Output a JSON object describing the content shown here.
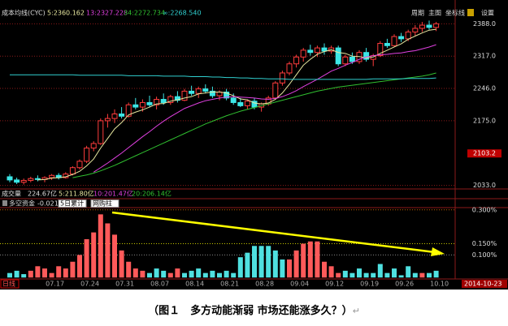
{
  "toolbar": {
    "indicator": "成本均线(CYC)",
    "buttons": [
      "周期",
      "主图",
      "坐标线",
      "设置"
    ]
  },
  "volume_header": {
    "title": "成交量",
    "items": [
      "224.67亿",
      "5:211.80亿",
      "10:201.47亿",
      "20:206.14亿"
    ]
  },
  "footer": {
    "period": "日线",
    "date": "2014-10-23"
  },
  "caption": "（图１　多方动能渐弱 市场还能涨多久？）",
  "paragraph_mark": "↵",
  "chart_data": [
    {
      "type": "candlestick",
      "up_color": "#ff3c3c",
      "down_color": "#3ce6e6",
      "ylim": [
        2027,
        2426
      ],
      "yticks": [
        {
          "value": 2033,
          "label": "2033.0"
        },
        {
          "value": 2175,
          "label": "2175.0"
        },
        {
          "value": 2246,
          "label": "2246.0"
        },
        {
          "value": 2317,
          "label": "2317.0"
        },
        {
          "value": 2388,
          "label": "2388.0"
        }
      ],
      "price_marker": {
        "value": 2103.2,
        "label": "2103.2"
      },
      "grid": true,
      "open": [
        2052,
        2045,
        2040,
        2044,
        2048,
        2046,
        2050,
        2055,
        2050,
        2058,
        2072,
        2086,
        2115,
        2125,
        2175,
        2180,
        2190,
        2185,
        2210,
        2205,
        2215,
        2210,
        2222,
        2215,
        2228,
        2220,
        2240,
        2235,
        2245,
        2240,
        2230,
        2238,
        2225,
        2215,
        2208,
        2218,
        2205,
        2212,
        2225,
        2258,
        2280,
        2300,
        2315,
        2330,
        2325,
        2335,
        2328,
        2335,
        2300,
        2315,
        2305,
        2325,
        2310,
        2318,
        2345,
        2340,
        2360,
        2355,
        2370,
        2378,
        2385,
        2380
      ],
      "high": [
        2058,
        2050,
        2048,
        2052,
        2055,
        2053,
        2058,
        2060,
        2062,
        2075,
        2090,
        2120,
        2130,
        2180,
        2190,
        2200,
        2205,
        2215,
        2225,
        2222,
        2230,
        2228,
        2235,
        2232,
        2240,
        2245,
        2252,
        2250,
        2255,
        2250,
        2242,
        2245,
        2235,
        2225,
        2222,
        2225,
        2215,
        2230,
        2262,
        2285,
        2305,
        2320,
        2335,
        2342,
        2340,
        2345,
        2340,
        2340,
        2320,
        2325,
        2330,
        2335,
        2322,
        2350,
        2355,
        2365,
        2368,
        2375,
        2385,
        2392,
        2395,
        2392
      ],
      "low": [
        2040,
        2036,
        2035,
        2040,
        2042,
        2040,
        2045,
        2046,
        2048,
        2055,
        2068,
        2082,
        2108,
        2122,
        2160,
        2170,
        2180,
        2182,
        2200,
        2195,
        2205,
        2200,
        2210,
        2210,
        2215,
        2218,
        2230,
        2225,
        2235,
        2225,
        2220,
        2220,
        2210,
        2205,
        2200,
        2200,
        2195,
        2208,
        2222,
        2252,
        2275,
        2292,
        2305,
        2318,
        2315,
        2320,
        2322,
        2295,
        2295,
        2300,
        2300,
        2305,
        2295,
        2315,
        2335,
        2338,
        2348,
        2350,
        2362,
        2370,
        2375,
        2372
      ],
      "close": [
        2045,
        2040,
        2044,
        2048,
        2046,
        2050,
        2055,
        2050,
        2058,
        2072,
        2086,
        2115,
        2125,
        2175,
        2180,
        2190,
        2185,
        2210,
        2205,
        2215,
        2210,
        2222,
        2215,
        2228,
        2220,
        2240,
        2235,
        2245,
        2240,
        2230,
        2238,
        2225,
        2215,
        2208,
        2218,
        2205,
        2212,
        2225,
        2258,
        2280,
        2300,
        2315,
        2330,
        2325,
        2335,
        2328,
        2335,
        2300,
        2315,
        2305,
        2325,
        2310,
        2318,
        2345,
        2340,
        2360,
        2355,
        2370,
        2378,
        2385,
        2380,
        2388
      ],
      "series": [
        {
          "name": "5:2360.162",
          "color": "#e8e8a0",
          "values": [
            null,
            null,
            null,
            null,
            2045,
            2046,
            2049,
            2050,
            2052,
            2057,
            2064,
            2076,
            2091,
            2115,
            2136,
            2157,
            2171,
            2188,
            2194,
            2199,
            2205,
            2212,
            2213,
            2218,
            2221,
            2225,
            2228,
            2234,
            2236,
            2238,
            2238,
            2236,
            2230,
            2223,
            2221,
            2214,
            2212,
            2214,
            2222,
            2236,
            2255,
            2276,
            2297,
            2310,
            2321,
            2327,
            2331,
            2325,
            2323,
            2317,
            2316,
            2313,
            2315,
            2323,
            2330,
            2337,
            2344,
            2354,
            2361,
            2368,
            2374,
            2376
          ]
        },
        {
          "name": "13:2327.228",
          "color": "#e040e0",
          "values": [
            null,
            null,
            null,
            null,
            null,
            null,
            null,
            null,
            null,
            null,
            null,
            null,
            2062,
            2072,
            2082,
            2093,
            2104,
            2116,
            2128,
            2140,
            2151,
            2163,
            2174,
            2184,
            2193,
            2202,
            2208,
            2214,
            2219,
            2222,
            2225,
            2227,
            2228,
            2227,
            2226,
            2225,
            2223,
            2222,
            2224,
            2228,
            2234,
            2241,
            2250,
            2258,
            2266,
            2275,
            2284,
            2290,
            2297,
            2303,
            2310,
            2315,
            2318,
            2320,
            2321,
            2323,
            2324,
            2327,
            2329,
            2333,
            2337,
            2342
          ]
        },
        {
          "name": "34:2272.734",
          "color": "#30c030",
          "values": [
            null,
            null,
            null,
            null,
            null,
            null,
            null,
            null,
            null,
            2050,
            2053,
            2056,
            2060,
            2065,
            2071,
            2077,
            2084,
            2091,
            2098,
            2105,
            2112,
            2119,
            2126,
            2133,
            2140,
            2147,
            2154,
            2161,
            2168,
            2174,
            2180,
            2186,
            2191,
            2196,
            2200,
            2204,
            2208,
            2212,
            2216,
            2220,
            2224,
            2228,
            2232,
            2236,
            2240,
            2243,
            2246,
            2249,
            2251,
            2253,
            2255,
            2257,
            2259,
            2261,
            2263,
            2265,
            2267,
            2269,
            2271,
            2273,
            2276,
            2280
          ]
        },
        {
          "name": "∞:2268.540",
          "color": "#30d0d0",
          "values": [
            2276,
            2276,
            2276,
            2276,
            2276,
            2276,
            2276,
            2276,
            2276,
            2276,
            2275,
            2275,
            2275,
            2275,
            2275,
            2275,
            2275,
            2274,
            2274,
            2274,
            2274,
            2274,
            2273,
            2273,
            2273,
            2273,
            2272,
            2272,
            2272,
            2271,
            2271,
            2270,
            2270,
            2269,
            2269,
            2268,
            2268,
            2267,
            2267,
            2267,
            2266,
            2266,
            2266,
            2266,
            2266,
            2266,
            2266,
            2266,
            2266,
            2266,
            2266,
            2266,
            2267,
            2267,
            2267,
            2267,
            2267,
            2268,
            2268,
            2268,
            2268,
            2269
          ]
        }
      ]
    },
    {
      "type": "bar",
      "title": "多空资金",
      "subtitle": "-0.021%",
      "options": [
        "5日累计",
        "网购柱"
      ],
      "ylim": [
        -0.01,
        0.31
      ],
      "yticks": [
        {
          "value": 0.1,
          "label": "0.100%"
        },
        {
          "value": 0.15,
          "label": "0.150%"
        },
        {
          "value": 0.3,
          "label": "0.300%"
        }
      ],
      "grid": true,
      "categories": [
        null,
        null,
        null,
        null,
        null,
        null,
        "07.17",
        null,
        null,
        null,
        null,
        "07.24",
        null,
        null,
        null,
        null,
        "07.31",
        null,
        null,
        null,
        null,
        "08.07",
        null,
        null,
        null,
        null,
        "08.14",
        null,
        null,
        null,
        null,
        "08.21",
        null,
        null,
        null,
        null,
        "08.28",
        null,
        null,
        null,
        null,
        "09.04",
        null,
        null,
        null,
        null,
        "09.12",
        null,
        null,
        null,
        null,
        "09.19",
        null,
        null,
        null,
        null,
        "09.26",
        null,
        null,
        null,
        null,
        "10.10"
      ],
      "series": [
        {
          "color": "#ff5a5a",
          "values": [
            null,
            null,
            null,
            0.03,
            0.05,
            0.04,
            0.02,
            0.05,
            0.04,
            0.07,
            0.1,
            0.17,
            0.2,
            0.28,
            0.24,
            0.19,
            0.12,
            0.07,
            0.04,
            0.03,
            null,
            null,
            null,
            0.02,
            0.04,
            null,
            null,
            null,
            null,
            null,
            null,
            null,
            null,
            null,
            null,
            null,
            null,
            null,
            null,
            null,
            0.08,
            0.12,
            0.15,
            0.16,
            0.16,
            0.07,
            0.05,
            0.02,
            null,
            null,
            null,
            null,
            null,
            null,
            null,
            null,
            null,
            null,
            null,
            0.02,
            null,
            null
          ]
        },
        {
          "color": "#4fe0e0",
          "values": [
            0.02,
            0.03,
            0.015,
            null,
            null,
            null,
            null,
            null,
            null,
            null,
            null,
            null,
            null,
            null,
            null,
            null,
            null,
            null,
            null,
            null,
            0.02,
            0.04,
            0.03,
            null,
            null,
            0.02,
            0.03,
            0.04,
            0.02,
            0.03,
            0.02,
            0.03,
            0.02,
            0.09,
            0.11,
            0.14,
            0.14,
            0.14,
            0.12,
            0.08,
            null,
            null,
            null,
            null,
            null,
            null,
            null,
            null,
            0.03,
            0.02,
            0.04,
            0.02,
            0.02,
            0.06,
            0.02,
            0.04,
            0.01,
            0.05,
            0.02,
            null,
            0.02,
            0.03
          ]
        }
      ]
    }
  ]
}
